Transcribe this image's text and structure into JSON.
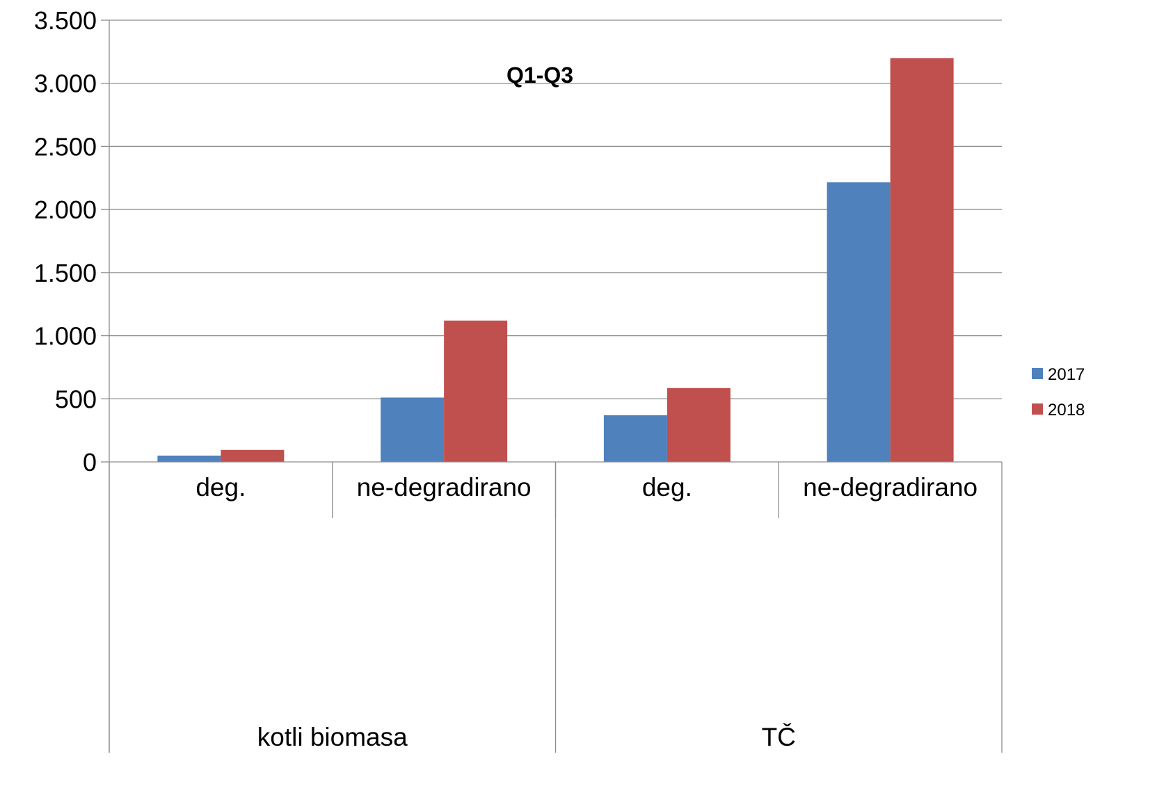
{
  "chart_data": {
    "type": "bar",
    "title": "Q1-Q3",
    "xlabel": "",
    "ylabel": "",
    "ylim": [
      0,
      3500
    ],
    "yticks": [
      0,
      500,
      1000,
      1500,
      2000,
      2500,
      3000,
      3500
    ],
    "ytick_labels": [
      "0",
      "500",
      "1.000",
      "1.500",
      "2.000",
      "2.500",
      "3.000",
      "3.500"
    ],
    "categories": [
      "deg.",
      "ne-degradirano",
      "deg.",
      "ne-degradirano"
    ],
    "groups": [
      {
        "label": "kotli biomasa",
        "categories": [
          "deg.",
          "ne-degradirano"
        ]
      },
      {
        "label": "TČ",
        "categories": [
          "deg.",
          "ne-degradirano"
        ]
      }
    ],
    "series": [
      {
        "name": "2017",
        "color": "#4F81BD",
        "values": [
          50,
          510,
          370,
          2215
        ]
      },
      {
        "name": "2018",
        "color": "#C0504D",
        "values": [
          95,
          1120,
          585,
          3200
        ]
      }
    ],
    "grid": true,
    "legend": "right"
  }
}
